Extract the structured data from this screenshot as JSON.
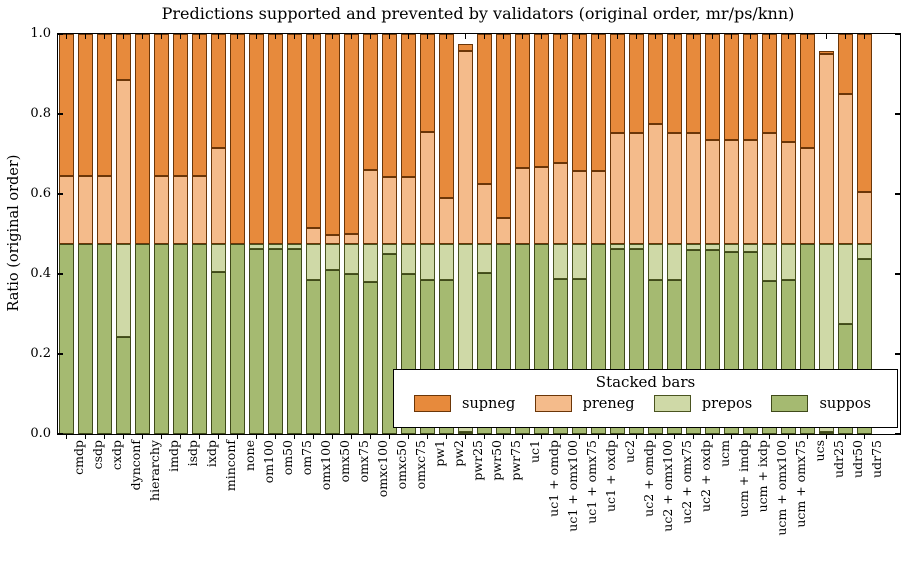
{
  "figure": {
    "background": "#ffffff"
  },
  "chart_data": {
    "type": "bar",
    "stacked": true,
    "title": "Predictions supported and prevented by validators (original order, mr/ps/knn)",
    "xlabel": "",
    "ylabel": "Ratio (original order)",
    "ylim": [
      0.0,
      1.0
    ],
    "grid": false,
    "y_ticks": [
      "0.0",
      "0.2",
      "0.4",
      "0.6",
      "0.8",
      "1.0"
    ],
    "categories": [
      "cmdp",
      "csdp",
      "cxdp",
      "dynconf",
      "hierarchy",
      "imdp",
      "isdp",
      "ixdp",
      "minconf",
      "none",
      "om100",
      "om50",
      "om75",
      "omx100",
      "omx50",
      "omx75",
      "omxc100",
      "omxc50",
      "omxc75",
      "pw1",
      "pw2",
      "pwr25",
      "pwr50",
      "pwr75",
      "uc1",
      "uc1 + omdp",
      "uc1 + omx100",
      "uc1 + omx75",
      "uc1 + oxdp",
      "uc2",
      "uc2 + omdp",
      "uc2 + omx100",
      "uc2 + omx75",
      "uc2 + oxdp",
      "ucm",
      "ucm + imdp",
      "ucm + ixdp",
      "ucm + omx100",
      "ucm + omx75",
      "ucs",
      "udr25",
      "udr50",
      "udr75"
    ],
    "series": [
      {
        "name": "suppos",
        "color": "#a5ba71",
        "edge": "#3f4a1a",
        "values": [
          0.476,
          0.476,
          0.476,
          0.242,
          0.476,
          0.476,
          0.476,
          0.476,
          0.404,
          0.476,
          0.463,
          0.463,
          0.463,
          0.384,
          0.409,
          0.401,
          0.381,
          0.451,
          0.401,
          0.384,
          0.384,
          0.005,
          0.402,
          0.476,
          0.476,
          0.476,
          0.388,
          0.388,
          0.476,
          0.463,
          0.463,
          0.384,
          0.384,
          0.461,
          0.461,
          0.456,
          0.454,
          0.382,
          0.385,
          0.476,
          0.005,
          0.276,
          0.438
        ]
      },
      {
        "name": "prepos",
        "color": "#cfd9a7",
        "edge": "#4a5420",
        "values": [
          0,
          0,
          0,
          0.234,
          0,
          0,
          0,
          0,
          0.072,
          0,
          0.013,
          0.013,
          0.013,
          0.092,
          0.067,
          0.075,
          0.095,
          0.025,
          0.075,
          0.092,
          0.092,
          0.471,
          0.074,
          0,
          0,
          0,
          0.088,
          0.088,
          0,
          0.013,
          0.013,
          0.092,
          0.092,
          0.015,
          0.015,
          0.02,
          0.022,
          0.094,
          0.091,
          0,
          0.471,
          0.2,
          0.038
        ]
      },
      {
        "name": "preneg",
        "color": "#f4bb8b",
        "edge": "#6b3608",
        "values": [
          0.169,
          0.169,
          0.169,
          0.409,
          0,
          0.169,
          0.169,
          0.169,
          0.24,
          0,
          0,
          0,
          0,
          0.038,
          0.021,
          0.025,
          0.184,
          0.166,
          0.166,
          0.28,
          0.113,
          0.482,
          0.15,
          0.064,
          0.189,
          0.192,
          0.202,
          0.181,
          0.181,
          0.276,
          0.276,
          0.299,
          0.276,
          0.276,
          0.259,
          0.259,
          0.259,
          0.276,
          0.254,
          0.238,
          0.473,
          0.374,
          0.128
        ]
      },
      {
        "name": "supneg",
        "color": "#e78a3c",
        "edge": "#6b3608",
        "values": [
          0.355,
          0.355,
          0.355,
          0.115,
          0.524,
          0.355,
          0.355,
          0.355,
          0.284,
          0.524,
          0.524,
          0.524,
          0.524,
          0.486,
          0.503,
          0.499,
          0.34,
          0.358,
          0.358,
          0.244,
          0.411,
          0.017,
          0.374,
          0.46,
          0.335,
          0.332,
          0.322,
          0.343,
          0.343,
          0.248,
          0.248,
          0.225,
          0.248,
          0.248,
          0.265,
          0.265,
          0.265,
          0.248,
          0.27,
          0.286,
          0.009,
          0.15,
          0.396
        ]
      }
    ],
    "legend": {
      "title": "Stacked bars",
      "position": "lower right",
      "entries": [
        "supneg",
        "preneg",
        "prepos",
        "suppos"
      ]
    }
  },
  "colors": {
    "supneg": "#e78a3c",
    "preneg": "#f4bb8b",
    "prepos": "#cfd9a7",
    "suppos": "#a5ba71",
    "frame": "#000000",
    "background": "#ffffff"
  }
}
